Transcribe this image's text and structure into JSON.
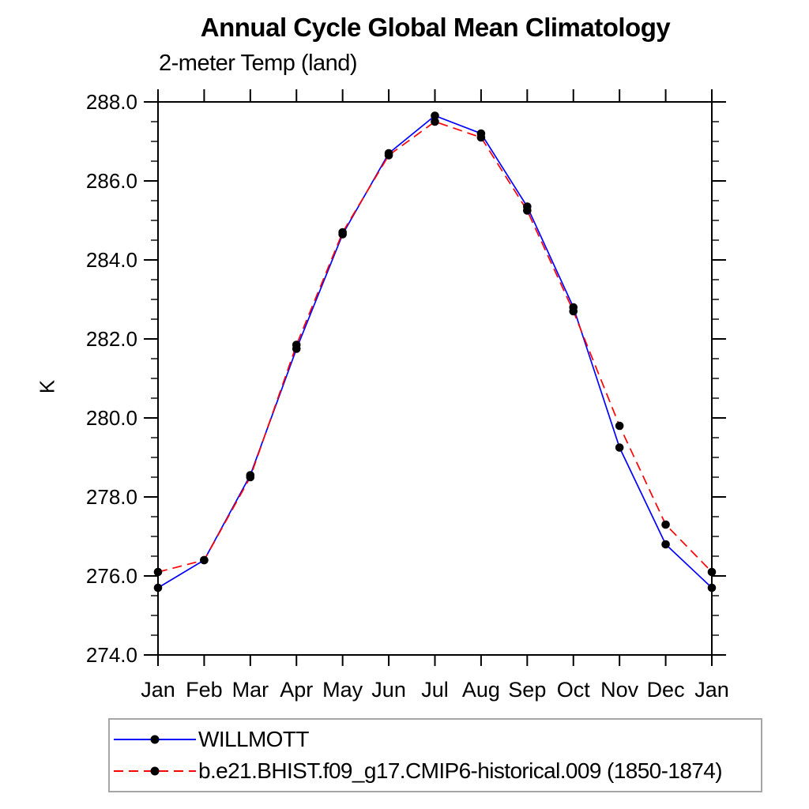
{
  "page": {
    "background": "#ffffff"
  },
  "chart_data": {
    "type": "line",
    "title": "Annual Cycle Global Mean Climatology",
    "subtitle": "2-meter Temp (land)",
    "ylabel": "K",
    "xlabel": "",
    "x_categories": [
      "Jan",
      "Feb",
      "Mar",
      "Apr",
      "May",
      "Jun",
      "Jul",
      "Aug",
      "Sep",
      "Oct",
      "Nov",
      "Dec",
      "Jan"
    ],
    "y_axis": {
      "min": 274.0,
      "max": 288.0,
      "major_step": 2.0,
      "minor_step": 0.5,
      "tick_labels_top_to_bottom": [
        "288.0",
        "286.0",
        "284.0",
        "282.0",
        "280.0",
        "278.0",
        "276.0",
        "274.0"
      ]
    },
    "grid": false,
    "frame_color": "#000000",
    "marker": "filled-circle",
    "legend_position": "bottom-left-box",
    "series": [
      {
        "name": "WILLMOTT",
        "color": "#0000ff",
        "line_style": "solid",
        "marker_color": "#000000",
        "values": [
          275.7,
          276.4,
          278.55,
          281.75,
          284.65,
          286.7,
          287.65,
          287.2,
          285.35,
          282.8,
          279.25,
          276.8,
          275.7
        ]
      },
      {
        "name": "b.e21.BHIST.f09_g17.CMIP6-historical.009 (1850-1874)",
        "color": "#ff0000",
        "line_style": "dashed",
        "dash_pattern": "12 7",
        "marker_color": "#000000",
        "values": [
          276.1,
          276.4,
          278.5,
          281.85,
          284.7,
          286.65,
          287.5,
          287.1,
          285.25,
          282.7,
          279.8,
          277.3,
          276.1
        ]
      }
    ]
  }
}
